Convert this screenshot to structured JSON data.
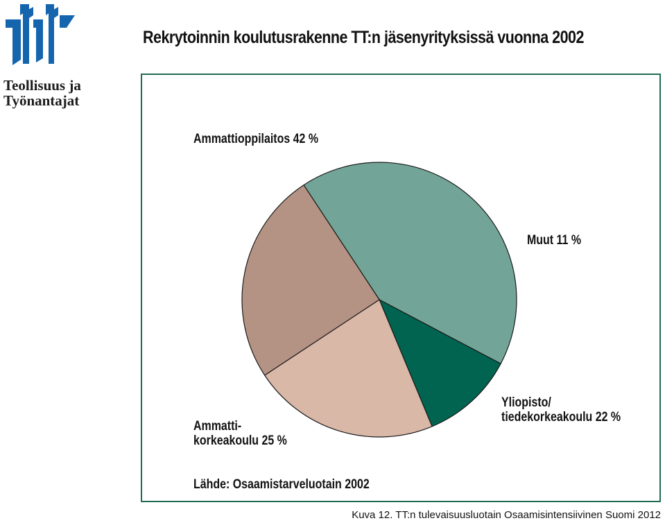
{
  "header": {
    "title": "Rekrytoinnin koulutusrakenne TT:n jäsenyrityksissä vuonna 2002",
    "logo_line1": "Teollisuus ja",
    "logo_line2": "Työnantajat"
  },
  "chart_data": {
    "type": "pie",
    "title": "Rekrytoinnin koulutusrakenne TT:n jäsenyrityksissä vuonna 2002",
    "slices": [
      {
        "label_lines": [
          "Ammattioppilaitos 42 %"
        ],
        "value": 42,
        "color": "#72a598"
      },
      {
        "label_lines": [
          "Muut 11 %"
        ],
        "value": 11,
        "color": "#006450"
      },
      {
        "label_lines": [
          "Yliopisto/",
          "tiedekorkeakoulu 22 %"
        ],
        "value": 22,
        "color": "#d9b8a8"
      },
      {
        "label_lines": [
          "Ammatti-",
          "korkeakoulu 25 %"
        ],
        "value": 25,
        "color": "#b59384"
      }
    ],
    "start_angle_deg": 123.4,
    "legend": "none"
  },
  "source": "Lähde: Osaamistarveluotain 2002",
  "caption": "Kuva 12. TT:n tulevaisuusluotain Osaamisintensiivinen Suomi 2012",
  "colors": {
    "logo": "#1565ae",
    "frame": "#1f6b54"
  }
}
